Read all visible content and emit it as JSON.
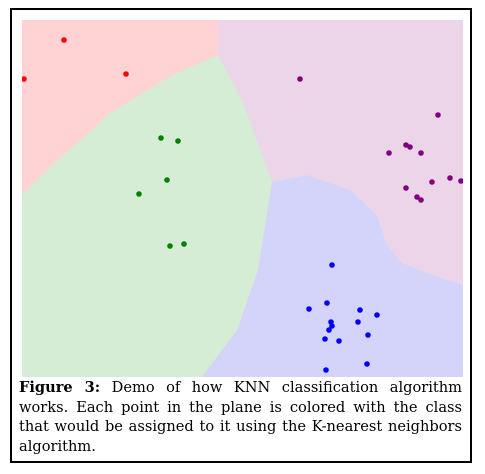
{
  "figure": {
    "label": "Figure 3:",
    "caption": "Demo of how KNN classification algorithm works. Each point in the plane is colored with the class that would be assigned to it using the K-nearest neighbors algorithm."
  },
  "colors": {
    "region_red": "#ffd3d3",
    "region_green": "#d5ecd5",
    "region_purple": "#ecd5e8",
    "region_blue": "#d4d4fb",
    "point_red": "#ff0000",
    "point_green": "#008000",
    "point_purple": "#800080",
    "point_blue": "#0000ff"
  },
  "chart_data": {
    "type": "scatter",
    "xlim": [
      0,
      441
    ],
    "ylim": [
      0,
      357
    ],
    "axes_visible": false,
    "grid": false,
    "legend": "none",
    "series": [
      {
        "class": "red",
        "points": [
          [
            42,
            337
          ],
          [
            2,
            298
          ],
          [
            104,
            303
          ]
        ]
      },
      {
        "class": "green",
        "points": [
          [
            139,
            239
          ],
          [
            156,
            236
          ],
          [
            145,
            197
          ],
          [
            117,
            183
          ],
          [
            148,
            131
          ],
          [
            162,
            133
          ]
        ]
      },
      {
        "class": "purple",
        "points": [
          [
            278,
            298
          ],
          [
            416,
            262
          ],
          [
            384,
            232
          ],
          [
            388,
            230
          ],
          [
            367,
            224
          ],
          [
            399,
            224
          ],
          [
            384,
            189
          ],
          [
            410,
            195
          ],
          [
            428,
            199
          ],
          [
            439,
            196
          ],
          [
            395,
            180
          ],
          [
            399,
            177
          ]
        ]
      },
      {
        "class": "blue",
        "points": [
          [
            310,
            112
          ],
          [
            305,
            74
          ],
          [
            287,
            68
          ],
          [
            338,
            67
          ],
          [
            355,
            62
          ],
          [
            309,
            55
          ],
          [
            336,
            55
          ],
          [
            310,
            51
          ],
          [
            307,
            47
          ],
          [
            346,
            42
          ],
          [
            303,
            38
          ],
          [
            317,
            36
          ],
          [
            345,
            13
          ],
          [
            304,
            7
          ]
        ]
      }
    ]
  }
}
